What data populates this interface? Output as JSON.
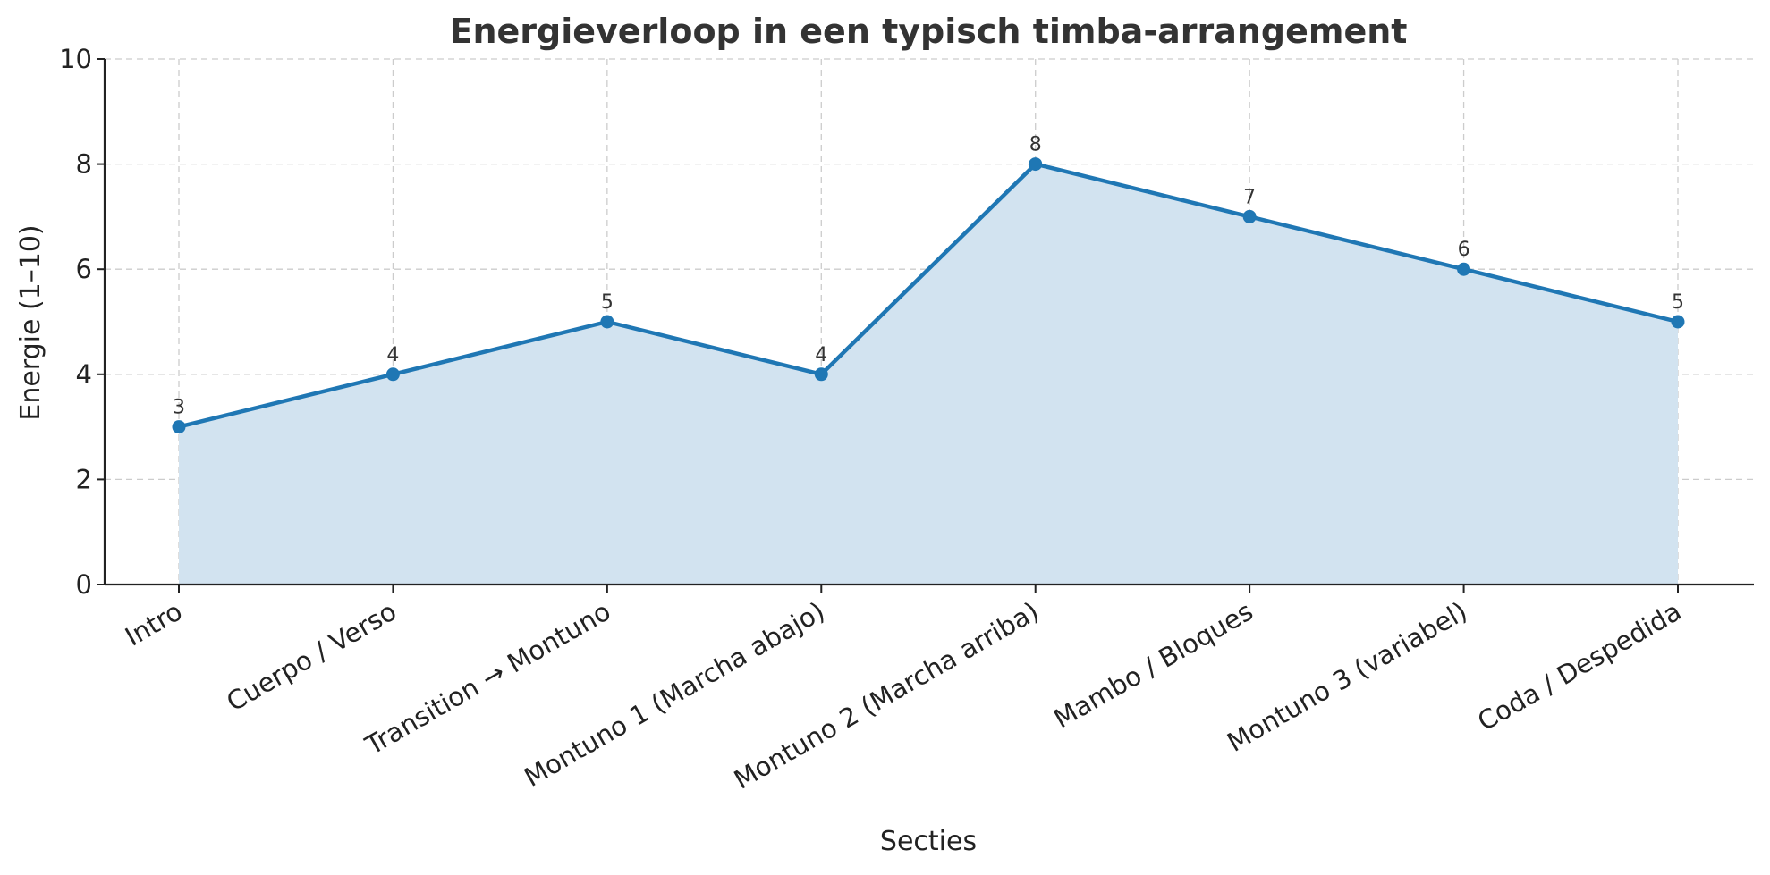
{
  "chart_data": {
    "type": "line",
    "title": "Energieverloop in een typisch timba-arrangement",
    "xlabel": "Secties",
    "ylabel": "Energie (1–10)",
    "categories": [
      "Intro",
      "Cuerpo / Verso",
      "Transition → Montuno",
      "Montuno 1 (Marcha abajo)",
      "Montuno 2 (Marcha arriba)",
      "Mambo / Bloques",
      "Montuno 3 (variabel)",
      "Coda / Despedida"
    ],
    "values": [
      3,
      4,
      5,
      4,
      8,
      7,
      6,
      5
    ],
    "data_labels": [
      "3",
      "4",
      "5",
      "4",
      "8",
      "7",
      "6",
      "5"
    ],
    "ylim": [
      0,
      10
    ],
    "yticks": [
      0,
      2,
      4,
      6,
      8,
      10
    ],
    "grid": true,
    "area_fill": true,
    "colors": {
      "line": "#1f77b4",
      "fill": "#d2e3f0",
      "grid": "#cccccc",
      "axis": "#222222",
      "title": "#333333"
    }
  }
}
